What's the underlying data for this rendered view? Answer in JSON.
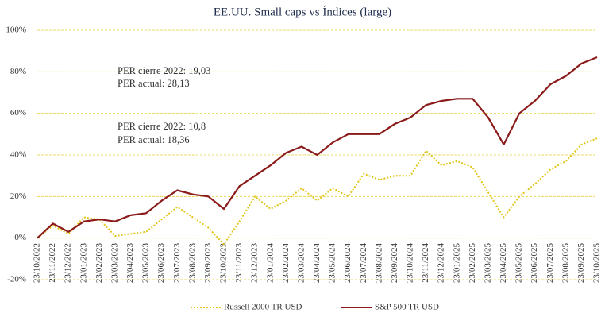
{
  "chart_data": {
    "type": "line",
    "title": "EE.UU. Small caps vs Índices (large)",
    "categories": [
      "23/10/2022",
      "23/11/2022",
      "23/12/2022",
      "23/01/2023",
      "23/02/2023",
      "23/03/2023",
      "23/04/2023",
      "23/05/2023",
      "23/06/2023",
      "23/07/2023",
      "23/08/2023",
      "23/09/2023",
      "23/10/2023",
      "23/11/2023",
      "23/12/2023",
      "23/01/2024",
      "23/02/2024",
      "23/03/2024",
      "23/04/2024",
      "23/05/2024",
      "23/06/2024",
      "23/07/2024",
      "23/08/2024",
      "23/09/2024",
      "23/10/2024",
      "23/11/2024",
      "23/12/2024",
      "23/01/2025",
      "23/02/2025",
      "23/03/2025",
      "23/04/2025",
      "23/05/2025",
      "23/06/2025",
      "23/07/2025",
      "23/08/2025",
      "23/09/2025",
      "23/10/2025"
    ],
    "series": [
      {
        "name": "Russell 2000 TR USD",
        "color": "#e3c51a",
        "dash": "dotted",
        "values": [
          0,
          6,
          2,
          10,
          9,
          1,
          2,
          3,
          9,
          15,
          10,
          5,
          -3,
          8,
          20,
          14,
          18,
          24,
          18,
          24,
          20,
          31,
          28,
          30,
          30,
          42,
          35,
          37,
          34,
          22,
          10,
          20,
          26,
          33,
          37,
          45,
          48
        ]
      },
      {
        "name": "S&P 500 TR USD",
        "color": "#8b1a1a",
        "dash": "solid",
        "values": [
          0,
          7,
          3,
          8,
          9,
          8,
          11,
          12,
          18,
          23,
          21,
          20,
          14,
          25,
          30,
          35,
          41,
          44,
          40,
          46,
          50,
          50,
          50,
          55,
          58,
          64,
          66,
          67,
          67,
          58,
          45,
          60,
          66,
          74,
          78,
          84,
          87
        ]
      }
    ],
    "ylim": [
      -20,
      100
    ],
    "yticks": [
      {
        "value": -20,
        "label": "-20%"
      },
      {
        "value": 0,
        "label": "0%"
      },
      {
        "value": 20,
        "label": "20%"
      },
      {
        "value": 40,
        "label": "40%"
      },
      {
        "value": 60,
        "label": "60%"
      },
      {
        "value": 80,
        "label": "80%"
      },
      {
        "value": 100,
        "label": "100%"
      }
    ],
    "grid": true,
    "annotations": [
      {
        "text": "PER cierre 2022: 19,03",
        "color": "#8b1a1a"
      },
      {
        "text": "PER actual: 28,13",
        "color": "#8b1a1a"
      },
      {
        "text": "PER cierre 2022: 10,8",
        "color": "#d9bb12"
      },
      {
        "text": "PER actual: 18,36",
        "color": "#d9bb12"
      }
    ]
  }
}
